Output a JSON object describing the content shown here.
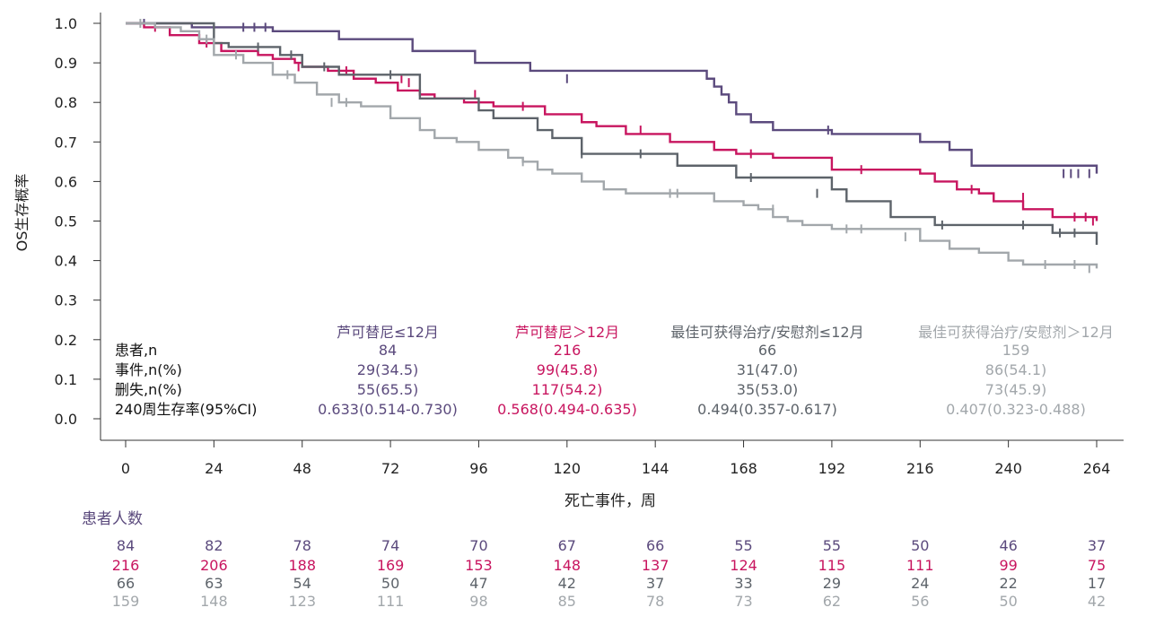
{
  "chart_data": {
    "type": "line",
    "subtype": "kaplan-meier-step",
    "title": "",
    "xlabel": "死亡事件，周",
    "ylabel": "OS生存概率",
    "xlim": [
      0,
      264
    ],
    "ylim": [
      0,
      1.0
    ],
    "xticks": [
      "0",
      "24",
      "48",
      "72",
      "96",
      "120",
      "144",
      "168",
      "192",
      "216",
      "240",
      "264"
    ],
    "yticks": [
      "0.0",
      "0.1",
      "0.2",
      "0.3",
      "0.4",
      "0.5",
      "0.6",
      "0.7",
      "0.8",
      "0.9",
      "1.0"
    ],
    "series": [
      {
        "name": "芦可替尼≤12月",
        "color": "#5b4a7d",
        "x": [
          0,
          18,
          40,
          58,
          78,
          95,
          110,
          158,
          160,
          162,
          164,
          166,
          170,
          176,
          192,
          216,
          224,
          230,
          264
        ],
        "y": [
          1.0,
          0.99,
          0.98,
          0.96,
          0.93,
          0.9,
          0.88,
          0.86,
          0.84,
          0.82,
          0.8,
          0.77,
          0.75,
          0.73,
          0.72,
          0.7,
          0.68,
          0.64,
          0.62
        ],
        "censors": [
          [
            5,
            1.0
          ],
          [
            32,
            0.99
          ],
          [
            35,
            0.99
          ],
          [
            38,
            0.99
          ],
          [
            120,
            0.86
          ],
          [
            191,
            0.73
          ],
          [
            255,
            0.62
          ],
          [
            257,
            0.62
          ],
          [
            259,
            0.62
          ],
          [
            262,
            0.62
          ]
        ]
      },
      {
        "name": "芦可替尼＞12月",
        "color": "#c8155f",
        "x": [
          0,
          5,
          12,
          20,
          26,
          36,
          40,
          46,
          48,
          55,
          62,
          68,
          74,
          80,
          84,
          92,
          100,
          114,
          124,
          128,
          136,
          148,
          160,
          166,
          176,
          192,
          216,
          220,
          226,
          232,
          236,
          244,
          252,
          264
        ],
        "y": [
          1.0,
          0.99,
          0.97,
          0.95,
          0.93,
          0.92,
          0.91,
          0.9,
          0.89,
          0.88,
          0.86,
          0.85,
          0.83,
          0.82,
          0.81,
          0.8,
          0.79,
          0.77,
          0.75,
          0.74,
          0.72,
          0.7,
          0.68,
          0.67,
          0.66,
          0.63,
          0.62,
          0.6,
          0.58,
          0.57,
          0.55,
          0.53,
          0.51,
          0.5
        ],
        "censors": [
          [
            8,
            0.99
          ],
          [
            22,
            0.95
          ],
          [
            47,
            0.89
          ],
          [
            60,
            0.88
          ],
          [
            75,
            0.86
          ],
          [
            77,
            0.85
          ],
          [
            95,
            0.82
          ],
          [
            108,
            0.79
          ],
          [
            140,
            0.73
          ],
          [
            170,
            0.67
          ],
          [
            200,
            0.63
          ],
          [
            230,
            0.58
          ],
          [
            244,
            0.56
          ],
          [
            258,
            0.51
          ],
          [
            261,
            0.51
          ],
          [
            263,
            0.5
          ]
        ]
      },
      {
        "name": "最佳可获得治疗/安慰剂≤12月",
        "color": "#5d636a",
        "x": [
          0,
          24,
          28,
          42,
          48,
          58,
          80,
          96,
          100,
          112,
          116,
          124,
          136,
          150,
          166,
          192,
          196,
          208,
          220,
          240,
          252,
          264
        ],
        "y": [
          1.0,
          0.95,
          0.94,
          0.92,
          0.89,
          0.87,
          0.81,
          0.78,
          0.76,
          0.73,
          0.71,
          0.67,
          0.67,
          0.64,
          0.61,
          0.58,
          0.55,
          0.51,
          0.49,
          0.49,
          0.47,
          0.44
        ],
        "censors": [
          [
            36,
            0.94
          ],
          [
            45,
            0.92
          ],
          [
            54,
            0.89
          ],
          [
            72,
            0.87
          ],
          [
            124,
            0.67
          ],
          [
            140,
            0.67
          ],
          [
            170,
            0.61
          ],
          [
            188,
            0.57
          ],
          [
            222,
            0.49
          ],
          [
            244,
            0.49
          ],
          [
            254,
            0.47
          ],
          [
            258,
            0.47
          ]
        ]
      },
      {
        "name": "最佳可获得治疗/安慰剂＞12月",
        "color": "#a2a7ab",
        "x": [
          0,
          8,
          15,
          20,
          24,
          32,
          40,
          46,
          52,
          58,
          64,
          72,
          80,
          84,
          90,
          96,
          104,
          108,
          112,
          116,
          124,
          130,
          136,
          144,
          160,
          168,
          172,
          176,
          180,
          184,
          192,
          200,
          216,
          224,
          232,
          240,
          244,
          264
        ],
        "y": [
          1.0,
          0.99,
          0.98,
          0.96,
          0.92,
          0.9,
          0.87,
          0.85,
          0.82,
          0.8,
          0.79,
          0.76,
          0.73,
          0.71,
          0.7,
          0.68,
          0.66,
          0.65,
          0.63,
          0.62,
          0.6,
          0.58,
          0.57,
          0.57,
          0.55,
          0.54,
          0.53,
          0.51,
          0.5,
          0.49,
          0.48,
          0.48,
          0.45,
          0.43,
          0.42,
          0.4,
          0.39,
          0.38
        ],
        "censors": [
          [
            4,
            1.0
          ],
          [
            22,
            0.96
          ],
          [
            30,
            0.92
          ],
          [
            44,
            0.87
          ],
          [
            56,
            0.8
          ],
          [
            60,
            0.8
          ],
          [
            96,
            0.69
          ],
          [
            108,
            0.65
          ],
          [
            148,
            0.57
          ],
          [
            150,
            0.57
          ],
          [
            176,
            0.53
          ],
          [
            196,
            0.48
          ],
          [
            200,
            0.48
          ],
          [
            212,
            0.46
          ],
          [
            250,
            0.39
          ],
          [
            258,
            0.39
          ],
          [
            262,
            0.38
          ]
        ]
      }
    ],
    "stats_table": {
      "row_labels": [
        "患者,n",
        "事件,n(%)",
        "删失,n(%)",
        "240周生存率(95%CI)"
      ],
      "columns": [
        {
          "header": "芦可替尼≤12月",
          "values": [
            "84",
            "29(34.5)",
            "55(65.5)",
            "0.633(0.514-0.730)"
          ]
        },
        {
          "header": "芦可替尼＞12月",
          "values": [
            "216",
            "99(45.8)",
            "117(54.2)",
            "0.568(0.494-0.635)"
          ]
        },
        {
          "header": "最佳可获得治疗/安慰剂≤12月",
          "values": [
            "66",
            "31(47.0)",
            "35(53.0)",
            "0.494(0.357-0.617)"
          ]
        },
        {
          "header": "最佳可获得治疗/安慰剂＞12月",
          "values": [
            "159",
            "86(54.1)",
            "73(45.9)",
            "0.407(0.323-0.488)"
          ]
        }
      ]
    },
    "risk_table": {
      "title": "患者人数",
      "rows": [
        [
          "84",
          "82",
          "78",
          "74",
          "70",
          "67",
          "66",
          "55",
          "55",
          "50",
          "46",
          "37"
        ],
        [
          "216",
          "206",
          "188",
          "169",
          "153",
          "148",
          "137",
          "124",
          "115",
          "111",
          "99",
          "75"
        ],
        [
          "66",
          "63",
          "54",
          "50",
          "47",
          "42",
          "37",
          "33",
          "29",
          "24",
          "22",
          "17"
        ],
        [
          "159",
          "148",
          "123",
          "111",
          "98",
          "85",
          "78",
          "73",
          "62",
          "56",
          "50",
          "42"
        ]
      ]
    }
  }
}
